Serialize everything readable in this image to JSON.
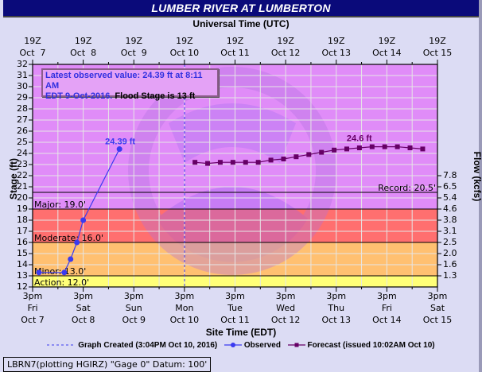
{
  "header": {
    "title": "LUMBER RIVER AT LUMBERTON"
  },
  "top_axis": {
    "title": "Universal Time (UTC)",
    "ticks": [
      {
        "l1": "19Z",
        "l2": "Oct  7"
      },
      {
        "l1": "19Z",
        "l2": "Oct  8"
      },
      {
        "l1": "19Z",
        "l2": "Oct  9"
      },
      {
        "l1": "19Z",
        "l2": "Oct 10"
      },
      {
        "l1": "19Z",
        "l2": "Oct 11"
      },
      {
        "l1": "19Z",
        "l2": "Oct 12"
      },
      {
        "l1": "19Z",
        "l2": "Oct 13"
      },
      {
        "l1": "19Z",
        "l2": "Oct 14"
      },
      {
        "l1": "19Z",
        "l2": "Oct 15"
      }
    ]
  },
  "bottom_axis": {
    "title": "Site Time (EDT)",
    "ticks": [
      {
        "l1": "3pm",
        "l2": "Fri",
        "l3": "Oct 7"
      },
      {
        "l1": "3pm",
        "l2": "Sat",
        "l3": "Oct 8"
      },
      {
        "l1": "3pm",
        "l2": "Sun",
        "l3": "Oct 9"
      },
      {
        "l1": "3pm",
        "l2": "Mon",
        "l3": "Oct 10"
      },
      {
        "l1": "3pm",
        "l2": "Tue",
        "l3": "Oct 11"
      },
      {
        "l1": "3pm",
        "l2": "Wed",
        "l3": "Oct 12"
      },
      {
        "l1": "3pm",
        "l2": "Thu",
        "l3": "Oct 13"
      },
      {
        "l1": "3pm",
        "l2": "Fri",
        "l3": "Oct 14"
      },
      {
        "l1": "3pm",
        "l2": "Sat",
        "l3": "Oct 15"
      }
    ]
  },
  "left_axis": {
    "title": "Stage (ft)",
    "min": 12,
    "max": 32,
    "ticks": [
      12,
      13,
      14,
      15,
      16,
      17,
      18,
      19,
      20,
      21,
      22,
      23,
      24,
      25,
      26,
      27,
      28,
      29,
      30,
      31,
      32
    ]
  },
  "right_axis": {
    "title": "Flow (kcfs)",
    "ticks": [
      {
        "stage": 13,
        "label": "1.3"
      },
      {
        "stage": 14,
        "label": "1.6"
      },
      {
        "stage": 15,
        "label": "2.0"
      },
      {
        "stage": 16,
        "label": "2.5"
      },
      {
        "stage": 17,
        "label": "3.1"
      },
      {
        "stage": 18,
        "label": "3.8"
      },
      {
        "stage": 19,
        "label": "4.6"
      },
      {
        "stage": 20,
        "label": "5.4"
      },
      {
        "stage": 21,
        "label": "6.5"
      },
      {
        "stage": 22,
        "label": "7.8"
      }
    ]
  },
  "info_box": {
    "line1_blue": "Latest observed value: 24.39 ft at 8:11 AM",
    "line2_blue": "EDT 9-Oct-2016.",
    "line2_black": " Flood Stage is 13 ft"
  },
  "thresholds": {
    "record": {
      "label": "Record: 20.5'",
      "value": 20.5
    },
    "major": {
      "label": "Major: 19.0'",
      "value": 19.0,
      "color": "#ff6f6f"
    },
    "moderate": {
      "label": "Moderate: 16.0'",
      "value": 16.0,
      "color": "#ffc071"
    },
    "minor": {
      "label": "Minor: 13.0'",
      "value": 13.0,
      "color": "#ffc071"
    },
    "action": {
      "label": "Action: 12.0'",
      "value": 12.0,
      "color": "#ffff78"
    }
  },
  "annotations": {
    "observed_peak": "24.39 ft",
    "forecast_peak": "24.6 ft"
  },
  "legend": {
    "graph_created": "Graph Created (3:04PM Oct 10, 2016)",
    "observed": "Observed",
    "forecast": "Forecast (issued 10:02AM Oct 10)"
  },
  "footer": {
    "text": "LBRN7(plotting HGIRZ) \"Gage 0\" Datum: 100'"
  },
  "colors": {
    "title_bg": "#0a0a7a",
    "page_bg": "#dcdcf4",
    "plot_above_major": "#e08cf8",
    "major_band": "#ff6f6f",
    "moderate_band": "#ffc071",
    "action_band": "#ffff78",
    "observed": "#3a3af0",
    "forecast": "#660066"
  },
  "chart_data": {
    "type": "line",
    "title": "LUMBER RIVER AT LUMBERTON",
    "xlabel": "Site Time (EDT)",
    "x2label": "Universal Time (UTC)",
    "ylabel": "Stage (ft)",
    "y2label": "Flow (kcfs)",
    "ylim": [
      12,
      32
    ],
    "xlim": [
      "2016-10-07 15:00 EDT",
      "2016-10-15 15:00 EDT"
    ],
    "grid": true,
    "legend_position": "bottom",
    "series": [
      {
        "name": "Observed",
        "color": "#3a3af0",
        "marker": "circle",
        "points": [
          {
            "t": "2016-10-07 18:00",
            "y": 13.3
          },
          {
            "t": "2016-10-08 06:00",
            "y": 13.3
          },
          {
            "t": "2016-10-08 09:00",
            "y": 14.5
          },
          {
            "t": "2016-10-08 12:00",
            "y": 16.0
          },
          {
            "t": "2016-10-08 15:00",
            "y": 18.0
          },
          {
            "t": "2016-10-09 08:11",
            "y": 24.39
          }
        ]
      },
      {
        "name": "Forecast (issued 10:02AM Oct 10)",
        "color": "#660066",
        "marker": "square",
        "points": [
          {
            "t": "2016-10-10 20:00",
            "y": 23.2
          },
          {
            "t": "2016-10-11 02:00",
            "y": 23.1
          },
          {
            "t": "2016-10-11 08:00",
            "y": 23.2
          },
          {
            "t": "2016-10-11 14:00",
            "y": 23.2
          },
          {
            "t": "2016-10-11 20:00",
            "y": 23.2
          },
          {
            "t": "2016-10-12 02:00",
            "y": 23.2
          },
          {
            "t": "2016-10-12 08:00",
            "y": 23.4
          },
          {
            "t": "2016-10-12 14:00",
            "y": 23.5
          },
          {
            "t": "2016-10-12 20:00",
            "y": 23.7
          },
          {
            "t": "2016-10-13 02:00",
            "y": 23.9
          },
          {
            "t": "2016-10-13 08:00",
            "y": 24.1
          },
          {
            "t": "2016-10-13 14:00",
            "y": 24.3
          },
          {
            "t": "2016-10-13 20:00",
            "y": 24.4
          },
          {
            "t": "2016-10-14 02:00",
            "y": 24.5
          },
          {
            "t": "2016-10-14 08:00",
            "y": 24.6
          },
          {
            "t": "2016-10-14 14:00",
            "y": 24.6
          },
          {
            "t": "2016-10-14 20:00",
            "y": 24.6
          },
          {
            "t": "2016-10-15 02:00",
            "y": 24.5
          },
          {
            "t": "2016-10-15 08:00",
            "y": 24.4
          }
        ]
      }
    ],
    "reference_lines": [
      {
        "label": "Record: 20.5'",
        "y": 20.5
      },
      {
        "label": "Major: 19.0'",
        "y": 19.0
      },
      {
        "label": "Moderate: 16.0'",
        "y": 16.0
      },
      {
        "label": "Minor: 13.0'",
        "y": 13.0
      },
      {
        "label": "Action: 12.0'",
        "y": 12.0
      },
      {
        "label": "Graph Created (3:04PM Oct 10, 2016)",
        "x": "2016-10-10 15:04",
        "style": "dashed"
      }
    ],
    "annotations": [
      "24.39 ft",
      "24.6 ft",
      "Latest observed value: 24.39 ft at 8:11 AM EDT 9-Oct-2016. Flood Stage is 13 ft"
    ],
    "flow_scale": [
      {
        "stage": 13,
        "kcfs": 1.3
      },
      {
        "stage": 14,
        "kcfs": 1.6
      },
      {
        "stage": 15,
        "kcfs": 2.0
      },
      {
        "stage": 16,
        "kcfs": 2.5
      },
      {
        "stage": 17,
        "kcfs": 3.1
      },
      {
        "stage": 18,
        "kcfs": 3.8
      },
      {
        "stage": 19,
        "kcfs": 4.6
      },
      {
        "stage": 20,
        "kcfs": 5.4
      },
      {
        "stage": 21,
        "kcfs": 6.5
      },
      {
        "stage": 22,
        "kcfs": 7.8
      }
    ]
  }
}
